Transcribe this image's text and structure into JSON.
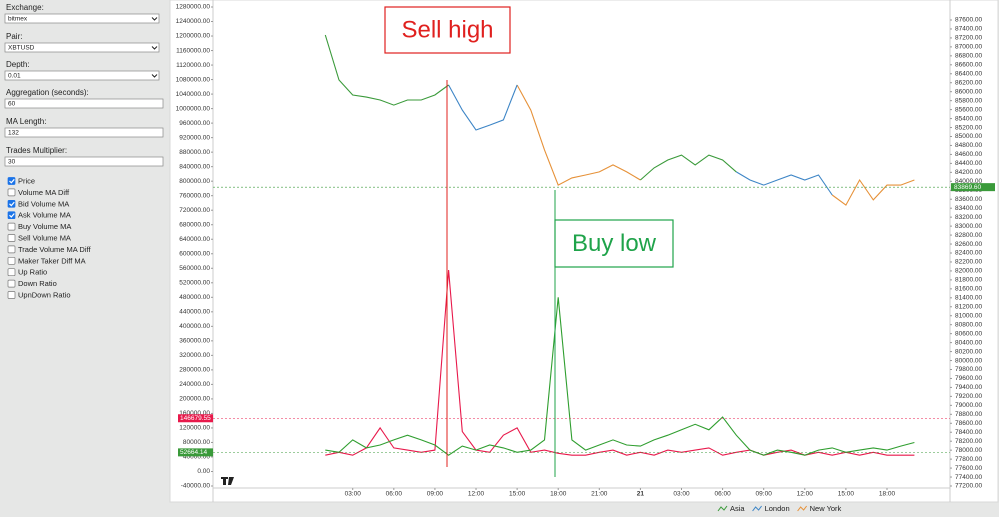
{
  "sidebar": {
    "fields": [
      {
        "label": "Exchange:",
        "value": "bitmex",
        "kind": "select"
      },
      {
        "label": "Pair:",
        "value": "XBTUSD",
        "kind": "select"
      },
      {
        "label": "Depth:",
        "value": "0.01",
        "kind": "select"
      },
      {
        "label": "Aggregation (seconds):",
        "value": "60",
        "kind": "input"
      },
      {
        "label": "MA Length:",
        "value": "132",
        "kind": "input"
      },
      {
        "label": "Trades Multiplier:",
        "value": "30",
        "kind": "input"
      }
    ],
    "checkboxes": [
      {
        "label": "Price",
        "checked": true
      },
      {
        "label": "Volume MA Diff",
        "checked": false
      },
      {
        "label": "Bid Volume MA",
        "checked": true
      },
      {
        "label": "Ask Volume MA",
        "checked": true
      },
      {
        "label": "Buy Volume MA",
        "checked": false
      },
      {
        "label": "Sell Volume MA",
        "checked": false
      },
      {
        "label": "Trade Volume MA Diff",
        "checked": false
      },
      {
        "label": "Maker Taker Diff MA",
        "checked": false
      },
      {
        "label": "Up Ratio",
        "checked": false
      },
      {
        "label": "Down Ratio",
        "checked": false
      },
      {
        "label": "UpnDown Ratio",
        "checked": false
      }
    ]
  },
  "chart_data": {
    "type": "line",
    "x": [
      1,
      2,
      3,
      4,
      5,
      6,
      7,
      8,
      9,
      10,
      11,
      12,
      13,
      14,
      15,
      16,
      17,
      18,
      19,
      20,
      21,
      22,
      23,
      24,
      25,
      26,
      27,
      28,
      29,
      30,
      31,
      32,
      33,
      34,
      35,
      36,
      37,
      38,
      39,
      40,
      41,
      42,
      43,
      44
    ],
    "xlim": [
      -7.2,
      46.6
    ],
    "xticks": [
      {
        "value": 3,
        "label": "03:00"
      },
      {
        "value": 6,
        "label": "06:00"
      },
      {
        "value": 9,
        "label": "09:00"
      },
      {
        "value": 12,
        "label": "12:00"
      },
      {
        "value": 15,
        "label": "15:00"
      },
      {
        "value": 18,
        "label": "18:00"
      },
      {
        "value": 21,
        "label": "21:00"
      },
      {
        "value": 24,
        "label": "21"
      },
      {
        "value": 27,
        "label": "03:00"
      },
      {
        "value": 30,
        "label": "06:00"
      },
      {
        "value": 33,
        "label": "09:00"
      },
      {
        "value": 36,
        "label": "12:00"
      },
      {
        "value": 39,
        "label": "15:00"
      },
      {
        "value": 42,
        "label": "18:00"
      }
    ],
    "ylim": [
      -40000,
      1280000
    ],
    "yticks": [
      {
        "value": 1280000,
        "label": "1280000.00"
      },
      {
        "value": 1240000,
        "label": "1240000.00"
      },
      {
        "value": 1200000,
        "label": "1200000.00"
      },
      {
        "value": 1160000,
        "label": "1160000.00"
      },
      {
        "value": 1120000,
        "label": "1120000.00"
      },
      {
        "value": 1080000,
        "label": "1080000.00"
      },
      {
        "value": 1040000,
        "label": "1040000.00"
      },
      {
        "value": 1000000,
        "label": "1000000.00"
      },
      {
        "value": 960000,
        "label": "960000.00"
      },
      {
        "value": 920000,
        "label": "920000.00"
      },
      {
        "value": 880000,
        "label": "880000.00"
      },
      {
        "value": 840000,
        "label": "840000.00"
      },
      {
        "value": 800000,
        "label": "800000.00"
      },
      {
        "value": 760000,
        "label": "760000.00"
      },
      {
        "value": 720000,
        "label": "720000.00"
      },
      {
        "value": 680000,
        "label": "680000.00"
      },
      {
        "value": 640000,
        "label": "640000.00"
      },
      {
        "value": 600000,
        "label": "600000.00"
      },
      {
        "value": 560000,
        "label": "560000.00"
      },
      {
        "value": 520000,
        "label": "520000.00"
      },
      {
        "value": 480000,
        "label": "480000.00"
      },
      {
        "value": 440000,
        "label": "440000.00"
      },
      {
        "value": 400000,
        "label": "400000.00"
      },
      {
        "value": 360000,
        "label": "360000.00"
      },
      {
        "value": 320000,
        "label": "320000.00"
      },
      {
        "value": 280000,
        "label": "280000.00"
      },
      {
        "value": 240000,
        "label": "240000.00"
      },
      {
        "value": 200000,
        "label": "200000.00"
      },
      {
        "value": 160000,
        "label": "160000.00"
      },
      {
        "value": 120000,
        "label": "120000.00"
      },
      {
        "value": 80000,
        "label": "80000.00"
      },
      {
        "value": 40000,
        "label": "40000.00"
      },
      {
        "value": 0,
        "label": "0.00"
      },
      {
        "value": -40000,
        "label": "-40000.00"
      }
    ],
    "y2lim": [
      77200,
      87890
    ],
    "y2ticks": [
      {
        "value": 87600,
        "label": "87600.00"
      },
      {
        "value": 87400,
        "label": "87400.00"
      },
      {
        "value": 87200,
        "label": "87200.00"
      },
      {
        "value": 87000,
        "label": "87000.00"
      },
      {
        "value": 86800,
        "label": "86800.00"
      },
      {
        "value": 86600,
        "label": "86600.00"
      },
      {
        "value": 86400,
        "label": "86400.00"
      },
      {
        "value": 86200,
        "label": "86200.00"
      },
      {
        "value": 86000,
        "label": "86000.00"
      },
      {
        "value": 85800,
        "label": "85800.00"
      },
      {
        "value": 85600,
        "label": "85600.00"
      },
      {
        "value": 85400,
        "label": "85400.00"
      },
      {
        "value": 85200,
        "label": "85200.00"
      },
      {
        "value": 85000,
        "label": "85000.00"
      },
      {
        "value": 84800,
        "label": "84800.00"
      },
      {
        "value": 84600,
        "label": "84600.00"
      },
      {
        "value": 84400,
        "label": "84400.00"
      },
      {
        "value": 84200,
        "label": "84200.00"
      },
      {
        "value": 84000,
        "label": "84000.00"
      },
      {
        "value": 83800,
        "label": "83800.00"
      },
      {
        "value": 83600,
        "label": "83600.00"
      },
      {
        "value": 83400,
        "label": "83400.00"
      },
      {
        "value": 83200,
        "label": "83200.00"
      },
      {
        "value": 83000,
        "label": "83000.00"
      },
      {
        "value": 82800,
        "label": "82800.00"
      },
      {
        "value": 82600,
        "label": "82600.00"
      },
      {
        "value": 82400,
        "label": "82400.00"
      },
      {
        "value": 82200,
        "label": "82200.00"
      },
      {
        "value": 82000,
        "label": "82000.00"
      },
      {
        "value": 81800,
        "label": "81800.00"
      },
      {
        "value": 81600,
        "label": "81600.00"
      },
      {
        "value": 81400,
        "label": "81400.00"
      },
      {
        "value": 81200,
        "label": "81200.00"
      },
      {
        "value": 81000,
        "label": "81000.00"
      },
      {
        "value": 80800,
        "label": "80800.00"
      },
      {
        "value": 80600,
        "label": "80600.00"
      },
      {
        "value": 80400,
        "label": "80400.00"
      },
      {
        "value": 80200,
        "label": "80200.00"
      },
      {
        "value": 80000,
        "label": "80000.00"
      },
      {
        "value": 79800,
        "label": "79800.00"
      },
      {
        "value": 79600,
        "label": "79600.00"
      },
      {
        "value": 79400,
        "label": "79400.00"
      },
      {
        "value": 79200,
        "label": "79200.00"
      },
      {
        "value": 79000,
        "label": "79000.00"
      },
      {
        "value": 78800,
        "label": "78800.00"
      },
      {
        "value": 78600,
        "label": "78600.00"
      },
      {
        "value": 78400,
        "label": "78400.00"
      },
      {
        "value": 78200,
        "label": "78200.00"
      },
      {
        "value": 78000,
        "label": "78000.00"
      },
      {
        "value": 77800,
        "label": "77800.00"
      },
      {
        "value": 77600,
        "label": "77600.00"
      },
      {
        "value": 77400,
        "label": "77400.00"
      },
      {
        "value": 77200,
        "label": "77200.00"
      }
    ],
    "series": [
      {
        "name": "Asia",
        "color": "#3a9a3a",
        "axis": "y2",
        "values": [
          87265,
          86260,
          85925,
          85880,
          85815,
          85700,
          85815,
          85815,
          85925,
          86150,
          null,
          null,
          null,
          null,
          null,
          null,
          null,
          null,
          null,
          null,
          null,
          null,
          null,
          84030,
          84300,
          84475,
          84585,
          84365,
          84585,
          84475,
          84210,
          null,
          null,
          null,
          null,
          null,
          null,
          null,
          null,
          null,
          null,
          null,
          null,
          null
        ]
      },
      {
        "name": "London",
        "color": "#3d85c6",
        "axis": "y2",
        "values": [
          null,
          null,
          null,
          null,
          null,
          null,
          null,
          null,
          null,
          86150,
          85590,
          85145,
          85255,
          85370,
          86150,
          null,
          null,
          null,
          null,
          null,
          null,
          null,
          null,
          null,
          null,
          null,
          null,
          null,
          null,
          null,
          84210,
          84030,
          83915,
          84030,
          84140,
          84030,
          84140,
          83695,
          null,
          null,
          null,
          null,
          null,
          null
        ]
      },
      {
        "name": "New York",
        "color": "#e69138",
        "axis": "y2",
        "values": [
          null,
          null,
          null,
          null,
          null,
          null,
          null,
          null,
          null,
          null,
          null,
          null,
          null,
          null,
          86150,
          85590,
          84700,
          83915,
          84075,
          84140,
          84210,
          84365,
          84210,
          84030,
          null,
          null,
          null,
          null,
          null,
          null,
          null,
          null,
          null,
          null,
          null,
          null,
          null,
          83695,
          83470,
          84030,
          83585,
          83915,
          83915,
          84030
        ]
      },
      {
        "color": "#2f9e2f",
        "axis": "y",
        "values": [
          59000,
          53000,
          87000,
          65000,
          73000,
          87000,
          100000,
          87000,
          73000,
          45000,
          70000,
          59000,
          73000,
          65000,
          53000,
          59000,
          87000,
          480000,
          87000,
          59000,
          73000,
          87000,
          73000,
          70000,
          87000,
          100000,
          115000,
          130000,
          115000,
          150000,
          100000,
          59000,
          45000,
          59000,
          53000,
          45000,
          59000,
          65000,
          53000,
          59000,
          65000,
          59000,
          70000,
          80000
        ]
      },
      {
        "color": "#e8194b",
        "axis": "y",
        "values": [
          45000,
          53000,
          45000,
          65000,
          120000,
          65000,
          59000,
          53000,
          59000,
          555000,
          110000,
          59000,
          53000,
          100000,
          120000,
          53000,
          59000,
          50000,
          45000,
          45000,
          53000,
          59000,
          45000,
          53000,
          45000,
          59000,
          53000,
          59000,
          65000,
          45000,
          53000,
          59000,
          45000,
          53000,
          59000,
          45000,
          53000,
          45000,
          53000,
          45000,
          53000,
          45000,
          45000,
          45000
        ]
      }
    ],
    "markers": [
      {
        "value": 146679.55,
        "color": "#e8194b",
        "axis": "y"
      },
      {
        "value": 52664.14,
        "color": "#3a9a3a",
        "axis": "y"
      },
      {
        "value": 83869.6,
        "label": "83869.60",
        "color": "#3a9a3a",
        "axis": "y2"
      }
    ],
    "annotations": [
      {
        "text": "Sell high",
        "color": "#e0201e"
      },
      {
        "text": "Buy low",
        "color": "#1fa34a"
      }
    ]
  }
}
